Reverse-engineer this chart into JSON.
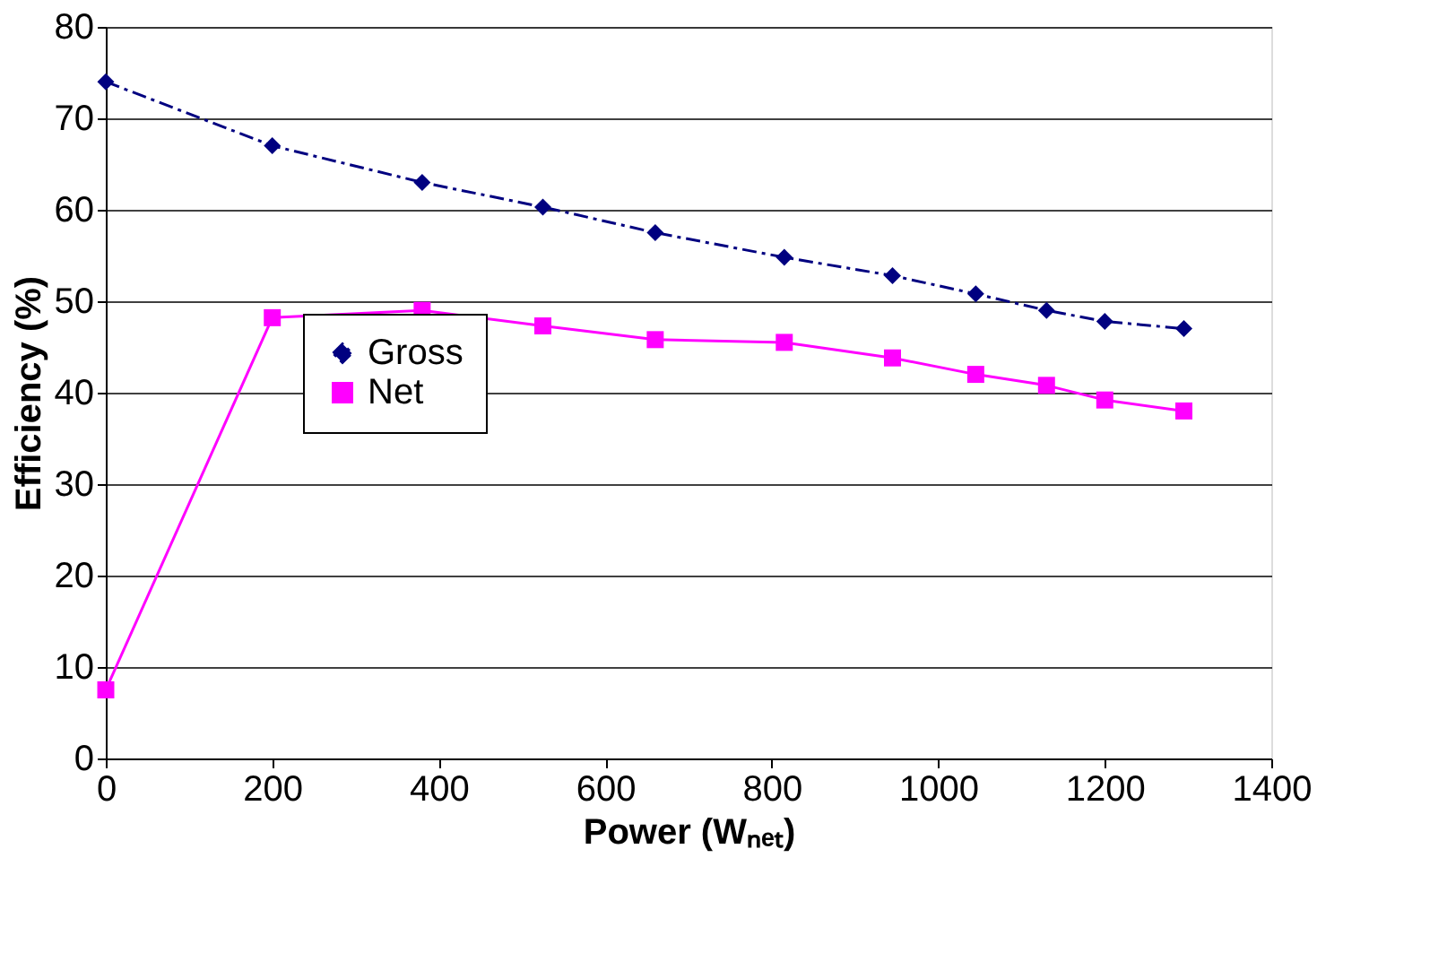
{
  "chart_data": {
    "type": "line",
    "xlabel": "Power (Wₙₑₜ)",
    "ylabel": "Efficiency (%)",
    "xlim": [
      0,
      1400
    ],
    "xticks": [
      0,
      200,
      400,
      600,
      800,
      1000,
      1200,
      1400
    ],
    "ylim": [
      0,
      80
    ],
    "yticks": [
      0,
      10,
      20,
      30,
      40,
      50,
      60,
      70,
      80
    ],
    "grid": "y",
    "legend": "left",
    "series": [
      {
        "name": "Gross",
        "color": "#000080",
        "marker": "diamond",
        "line_style": "dashed",
        "x": [
          0,
          200,
          380,
          525,
          660,
          815,
          945,
          1045,
          1130,
          1200,
          1295
        ],
        "values": [
          74,
          67,
          63,
          60.3,
          57.5,
          54.8,
          52.8,
          50.8,
          49,
          47.8,
          47
        ]
      },
      {
        "name": "Net",
        "color": "#ff00ff",
        "marker": "square",
        "line_style": "solid",
        "x": [
          0,
          200,
          380,
          525,
          660,
          815,
          945,
          1045,
          1130,
          1200,
          1295
        ],
        "values": [
          7.5,
          48.2,
          49,
          47.3,
          45.8,
          45.5,
          43.8,
          42,
          40.8,
          39.2,
          38
        ]
      }
    ]
  }
}
